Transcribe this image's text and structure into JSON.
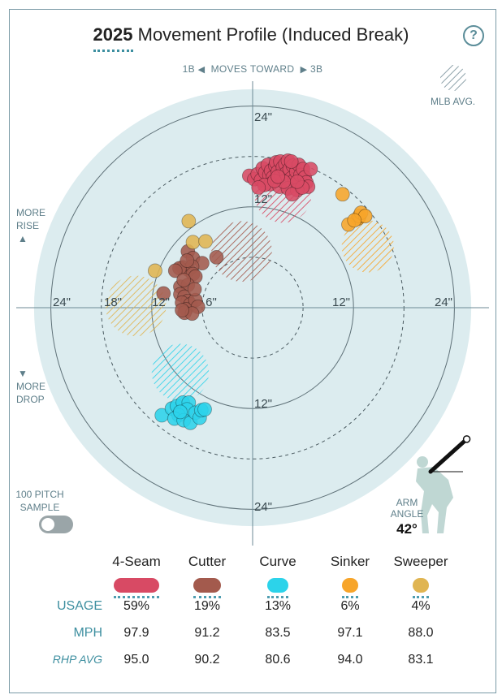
{
  "header": {
    "year": "2025",
    "title_rest": "Movement Profile (Induced Break)",
    "help_label": "?"
  },
  "direction": {
    "left": "1B",
    "middle": "MOVES TOWARD",
    "right": "3B"
  },
  "side_labels": {
    "rise_line1": "MORE",
    "rise_line2": "RISE",
    "drop_line1": "MORE",
    "drop_line2": "DROP"
  },
  "mlb_avg_label": "MLB AVG.",
  "sample": {
    "line1": "100 PITCH",
    "line2": "SAMPLE",
    "enabled": false
  },
  "arm": {
    "label_line1": "ARM",
    "label_line2": "ANGLE",
    "value": "42°",
    "degrees": 42
  },
  "chart_data": {
    "type": "scatter",
    "title": "2025 Movement Profile (Induced Break)",
    "x_axis": "horizontal break (inches)",
    "y_axis": "induced vertical break (inches)",
    "ring_labels": {
      "vertical_top": [
        "24\"",
        "12\""
      ],
      "vertical_bottom": [
        "12\"",
        "24\""
      ],
      "horizontal_left": [
        "24\"",
        "18\"",
        "12\"",
        "6\""
      ],
      "horizontal_right": [
        "12\"",
        "24\""
      ]
    },
    "rings_inches": [
      6,
      12,
      18,
      24
    ],
    "max_radius_inches": 26,
    "series": [
      {
        "name": "4-Seam",
        "color": "#d84a64",
        "avg_region": {
          "x": 3.6,
          "y": 13.5,
          "r": 3.4
        },
        "points": [
          [
            -0.4,
            15.7
          ],
          [
            0.2,
            15.3
          ],
          [
            0.6,
            15.9
          ],
          [
            1.0,
            15.2
          ],
          [
            1.2,
            16.6
          ],
          [
            1.5,
            16.1
          ],
          [
            1.8,
            17.0
          ],
          [
            2.0,
            15.8
          ],
          [
            2.2,
            16.3
          ],
          [
            2.4,
            15.5
          ],
          [
            2.7,
            16.9
          ],
          [
            2.8,
            17.3
          ],
          [
            3.0,
            16.2
          ],
          [
            3.3,
            17.4
          ],
          [
            3.4,
            15.8
          ],
          [
            3.6,
            16.7
          ],
          [
            3.9,
            17.1
          ],
          [
            4.0,
            16.0
          ],
          [
            4.2,
            17.5
          ],
          [
            4.4,
            16.5
          ],
          [
            4.6,
            15.4
          ],
          [
            4.8,
            16.9
          ],
          [
            5.0,
            15.2
          ],
          [
            5.2,
            16.2
          ],
          [
            5.5,
            17.0
          ],
          [
            5.7,
            15.8
          ],
          [
            6.0,
            16.5
          ],
          [
            6.2,
            15.5
          ],
          [
            6.4,
            14.9
          ],
          [
            6.6,
            14.4
          ],
          [
            2.1,
            14.7
          ],
          [
            3.2,
            14.4
          ],
          [
            4.2,
            14.2
          ],
          [
            5.3,
            14.0
          ],
          [
            4.7,
            13.5
          ],
          [
            1.4,
            14.6
          ],
          [
            3.7,
            15.0
          ],
          [
            2.6,
            15.1
          ],
          [
            5.9,
            14.3
          ],
          [
            6.9,
            16.5
          ],
          [
            0.7,
            14.3
          ],
          [
            5.3,
            15.0
          ],
          [
            3.0,
            15.6
          ],
          [
            4.6,
            17.4
          ]
        ]
      },
      {
        "name": "Cutter",
        "color": "#a35a4d",
        "avg_region": {
          "x": -1.3,
          "y": 6.7,
          "r": 3.6
        },
        "points": [
          [
            -7.7,
            6.7
          ],
          [
            -7.1,
            5.9
          ],
          [
            -6.0,
            5.3
          ],
          [
            -4.3,
            6.0
          ],
          [
            -8.3,
            4.8
          ],
          [
            -7.6,
            4.5
          ],
          [
            -7.2,
            4.9
          ],
          [
            -8.7,
            4.7
          ],
          [
            -9.2,
            4.4
          ],
          [
            -7.1,
            4.0
          ],
          [
            -6.8,
            3.7
          ],
          [
            -8.6,
            2.5
          ],
          [
            -7.7,
            2.7
          ],
          [
            -8.6,
            1.6
          ],
          [
            -8.1,
            1.3
          ],
          [
            -7.7,
            0.8
          ],
          [
            -8.4,
            0.6
          ],
          [
            -7.4,
            0.4
          ],
          [
            -7.9,
            -0.2
          ],
          [
            -8.1,
            -0.6
          ],
          [
            -6.8,
            0.9
          ],
          [
            -6.5,
            0.1
          ],
          [
            -7.2,
            -0.7
          ],
          [
            -10.6,
            1.7
          ],
          [
            -8.4,
            -0.3
          ],
          [
            -6.9,
            2.2
          ],
          [
            -7.8,
            5.6
          ],
          [
            -8.2,
            3.3
          ]
        ]
      },
      {
        "name": "Curve",
        "color": "#2cd3ea",
        "avg_region": {
          "x": -8.6,
          "y": -7.7,
          "r": 3.4
        },
        "points": [
          [
            -10.8,
            -12.8
          ],
          [
            -9.6,
            -12.0
          ],
          [
            -9.0,
            -11.7
          ],
          [
            -8.3,
            -11.3
          ],
          [
            -7.6,
            -11.3
          ],
          [
            -7.8,
            -12.1
          ],
          [
            -8.8,
            -12.8
          ],
          [
            -9.3,
            -13.2
          ],
          [
            -8.2,
            -13.4
          ],
          [
            -7.4,
            -13.7
          ],
          [
            -6.8,
            -12.5
          ],
          [
            -6.3,
            -13.1
          ],
          [
            -6.1,
            -12.2
          ],
          [
            -5.7,
            -12.1
          ],
          [
            -8.6,
            -12.4
          ]
        ]
      },
      {
        "name": "Sinker",
        "color": "#f7a52a",
        "avg_region": {
          "x": 13.7,
          "y": 7.3,
          "r": 3.1
        },
        "points": [
          [
            10.7,
            13.5
          ],
          [
            12.5,
            10.6
          ],
          [
            12.7,
            10.9
          ],
          [
            12.9,
            11.3
          ],
          [
            13.4,
            10.9
          ],
          [
            11.4,
            9.9
          ],
          [
            12.1,
            10.4
          ]
        ]
      },
      {
        "name": "Sweeper",
        "color": "#e0b552",
        "avg_region": {
          "x": -13.9,
          "y": 0.2,
          "r": 3.6
        },
        "points": [
          [
            -7.6,
            10.3
          ],
          [
            -7.1,
            7.8
          ],
          [
            -5.6,
            7.9
          ],
          [
            -11.6,
            4.4
          ]
        ]
      }
    ],
    "table": {
      "row_labels": [
        "USAGE",
        "MPH",
        "RHP AVG"
      ],
      "usage": [
        "59%",
        "19%",
        "13%",
        "6%",
        "4%"
      ],
      "mph": [
        "97.9",
        "91.2",
        "83.5",
        "97.1",
        "88.0"
      ],
      "rhp_avg": [
        "95.0",
        "90.2",
        "80.6",
        "94.0",
        "83.1"
      ]
    },
    "grid": true
  }
}
